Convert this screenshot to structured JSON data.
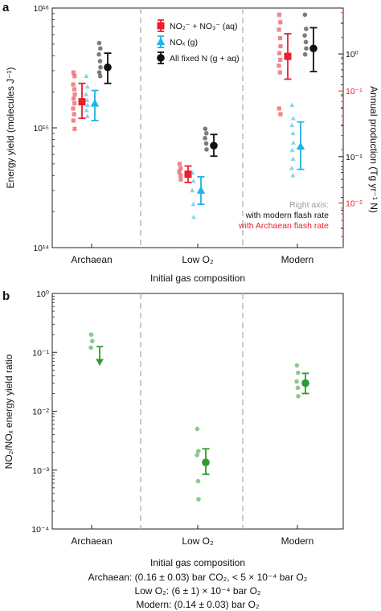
{
  "panel_a": {
    "label": "a",
    "ylabel": "Energy yield (molecules J⁻¹)",
    "y2label": "Annual production (Tg yr⁻¹ N)",
    "xlabel": "Initial gas composition",
    "categories": [
      "Archaean",
      "Low O₂",
      "Modern"
    ],
    "ylim": [
      100000000000000.0,
      1e+16
    ],
    "yticks": [
      {
        "label": "10¹⁴",
        "value": 100000000000000.0
      },
      {
        "label": "10¹⁵",
        "value": 1000000000000000.0
      },
      {
        "label": "10¹⁶",
        "value": 1e+16
      }
    ],
    "right_axis_black": {
      "range": [
        0.013,
        2.8
      ],
      "ticks": [
        {
          "label": "10⁰",
          "value": 1
        },
        {
          "label": "10⁻¹",
          "value": 0.1
        }
      ]
    },
    "right_axis_red": {
      "range": [
        0.004,
        0.55
      ],
      "ticks": [
        {
          "label": "10⁻¹",
          "value": 0.1
        },
        {
          "label": "10⁻²",
          "value": 0.01
        }
      ]
    },
    "legend": [
      {
        "label": "NO₂⁻ + NO₃⁻ (aq)",
        "color": "#e8202a",
        "marker": "square"
      },
      {
        "label": "NOₓ (g)",
        "color": "#1fb3e6",
        "marker": "triangle"
      },
      {
        "label": "All fixed N (g + aq)",
        "color": "#111111",
        "marker": "circle"
      }
    ],
    "notes": [
      "Right axis:",
      "with modern flash rate",
      "with Archaean flash rate"
    ],
    "note_colors": [
      "#9a9a9a",
      "#111111",
      "#e8202a"
    ]
  },
  "panel_b": {
    "label": "b",
    "ylabel": "NO₂/NOₓ energy yield ratio",
    "xlabel": "Initial gas composition",
    "categories": [
      "Archaean",
      "Low O₂",
      "Modern"
    ],
    "ylim": [
      0.0001,
      1
    ],
    "yticks": [
      {
        "label": "10⁻⁴",
        "value": 0.0001
      },
      {
        "label": "10⁻³",
        "value": 0.001
      },
      {
        "label": "10⁻²",
        "value": 0.01
      },
      {
        "label": "10⁻¹",
        "value": 0.1
      },
      {
        "label": "10⁰",
        "value": 1
      }
    ],
    "caption": [
      "Archaean: (0.16 ± 0.03) bar CO₂, < 5 × 10⁻⁴ bar O₂",
      "Low O₂: (6 ± 1) × 10⁻⁴ bar O₂",
      "Modern: (0.14 ± 0.03) bar O₂"
    ]
  },
  "chart_data": [
    {
      "type": "scatter",
      "panel": "a",
      "ylabel": "Energy yield (molecules J⁻¹)",
      "xlabel": "Initial gas composition",
      "categories": [
        "Archaean",
        "Low O₂",
        "Modern"
      ],
      "yscale": "log",
      "ylim": [
        100000000000000.0,
        1e+16
      ],
      "series": [
        {
          "name": "NO₂⁻ + NO₃⁻ (aq)",
          "color": "#e8202a",
          "marker": "square",
          "points": [
            [
              2900000000000000.0,
              2700000000000000.0,
              2300000000000000.0,
              2100000000000000.0,
              1900000000000000.0,
              1750000000000000.0,
              1600000000000000.0,
              1450000000000000.0,
              1300000000000000.0,
              1150000000000000.0,
              980000000000000.0
            ],
            [
              500000000000000.0,
              460000000000000.0,
              430000000000000.0,
              400000000000000.0,
              370000000000000.0
            ],
            [
              8800000000000000.0,
              7600000000000000.0,
              6600000000000000.0,
              5600000000000000.0,
              4800000000000000.0,
              4200000000000000.0,
              3700000000000000.0,
              3300000000000000.0,
              2900000000000000.0,
              1450000000000000.0,
              1300000000000000.0
            ]
          ],
          "mean": [
            1650000000000000.0,
            410000000000000.0,
            3950000000000000.0
          ],
          "err_low": [
            1200000000000000.0,
            350000000000000.0,
            2550000000000000.0
          ],
          "err_high": [
            2350000000000000.0,
            480000000000000.0,
            6100000000000000.0
          ]
        },
        {
          "name": "NOₓ (g)",
          "color": "#1fb3e6",
          "marker": "triangle",
          "points": [
            [
              2700000000000000.0,
              2200000000000000.0,
              1900000000000000.0,
              1700000000000000.0,
              1550000000000000.0,
              1400000000000000.0,
              1250000000000000.0
            ],
            [
              420000000000000.0,
              360000000000000.0,
              300000000000000.0,
              230000000000000.0,
              180000000000000.0
            ],
            [
              1550000000000000.0,
              1200000000000000.0,
              1050000000000000.0,
              900000000000000.0,
              750000000000000.0,
              650000000000000.0,
              550000000000000.0,
              460000000000000.0,
              400000000000000.0
            ]
          ],
          "mean": [
            1600000000000000.0,
            300000000000000.0,
            700000000000000.0
          ],
          "err_low": [
            1150000000000000.0,
            230000000000000.0,
            450000000000000.0
          ],
          "err_high": [
            2050000000000000.0,
            390000000000000.0,
            1120000000000000.0
          ]
        },
        {
          "name": "All fixed N (g + aq)",
          "color": "#111111",
          "marker": "circle",
          "points": [
            [
              5100000000000000.0,
              4600000000000000.0,
              4100000000000000.0,
              3600000000000000.0,
              3200000000000000.0,
              2900000000000000.0,
              2700000000000000.0
            ],
            [
              980000000000000.0,
              900000000000000.0,
              820000000000000.0,
              740000000000000.0,
              660000000000000.0
            ],
            [
              8800000000000000.0,
              6700000000000000.0,
              5900000000000000.0,
              5200000000000000.0,
              4600000000000000.0,
              4100000000000000.0
            ]
          ],
          "mean": [
            3200000000000000.0,
            710000000000000.0,
            4600000000000000.0
          ],
          "err_low": [
            2350000000000000.0,
            580000000000000.0,
            2950000000000000.0
          ],
          "err_high": [
            4200000000000000.0,
            880000000000000.0,
            6850000000000000.0
          ]
        }
      ]
    },
    {
      "type": "scatter",
      "panel": "b",
      "ylabel": "NO₂/NOₓ energy yield ratio",
      "xlabel": "Initial gas composition",
      "categories": [
        "Archaean",
        "Low O₂",
        "Modern"
      ],
      "yscale": "log",
      "ylim": [
        0.0001,
        1
      ],
      "series": [
        {
          "name": "",
          "color": "#2f9a2f",
          "marker": "circle",
          "points": [
            [
              0.2,
              0.155,
              0.12
            ],
            [
              0.005,
              0.0021,
              0.0018,
              0.00065,
              0.00032
            ],
            [
              0.06,
              0.045,
              0.032,
              0.025,
              0.018
            ]
          ],
          "mean": [
            0.125,
            0.00135,
            0.03
          ],
          "err_low": [
            0.06,
            0.00085,
            0.02
          ],
          "err_high": [
            0.125,
            0.0023,
            0.044
          ],
          "upper_limit": [
            true,
            false,
            false
          ]
        }
      ]
    }
  ]
}
